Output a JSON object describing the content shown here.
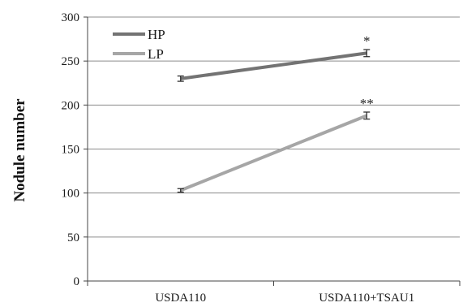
{
  "chart_data": {
    "type": "line",
    "title": "",
    "xlabel": "",
    "ylabel": "Nodule number",
    "categories": [
      "USDA110",
      "USDA110+TSAU1"
    ],
    "ylim": [
      0,
      300
    ],
    "yticks": [
      0,
      50,
      100,
      150,
      200,
      250,
      300
    ],
    "grid": true,
    "legend_position": "top-left",
    "series": [
      {
        "name": "HP",
        "values": [
          230,
          259
        ],
        "errors": [
          3,
          4
        ],
        "annotations": [
          "",
          "*"
        ],
        "color": "#737373"
      },
      {
        "name": "LP",
        "values": [
          103,
          188
        ],
        "errors": [
          2,
          4
        ],
        "annotations": [
          "",
          "**"
        ],
        "color": "#a6a6a6"
      }
    ]
  }
}
